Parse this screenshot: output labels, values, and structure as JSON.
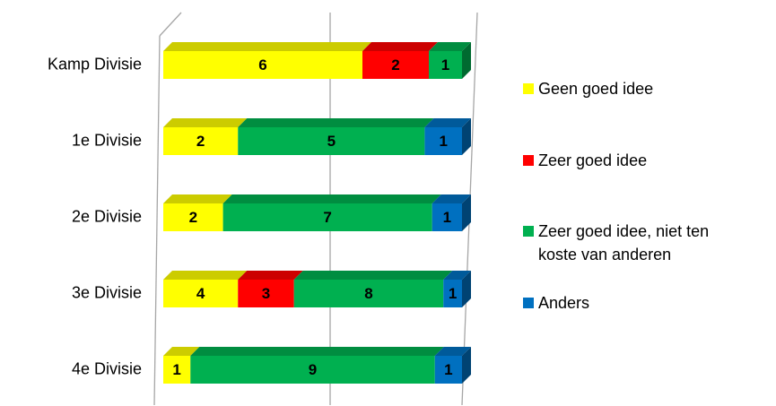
{
  "chart_data": {
    "type": "bar",
    "orientation": "horizontal",
    "stacking": "percent",
    "three_d": true,
    "categories": [
      "Kamp Divisie",
      "1e Divisie",
      "2e Divisie",
      "3e Divisie",
      "4e Divisie"
    ],
    "series": [
      {
        "name": "Geen goed idee",
        "color": "#ffff00",
        "values": [
          6,
          2,
          2,
          4,
          1
        ]
      },
      {
        "name": "Zeer goed idee",
        "color": "#ff0000",
        "values": [
          2,
          null,
          null,
          3,
          null
        ]
      },
      {
        "name": "Zeer goed idee, niet ten koste van anderen",
        "color": "#00b050",
        "values": [
          1,
          5,
          7,
          8,
          9
        ]
      },
      {
        "name": "Anders",
        "color": "#0070c0",
        "values": [
          null,
          1,
          1,
          1,
          1
        ]
      }
    ],
    "legend": "right"
  }
}
